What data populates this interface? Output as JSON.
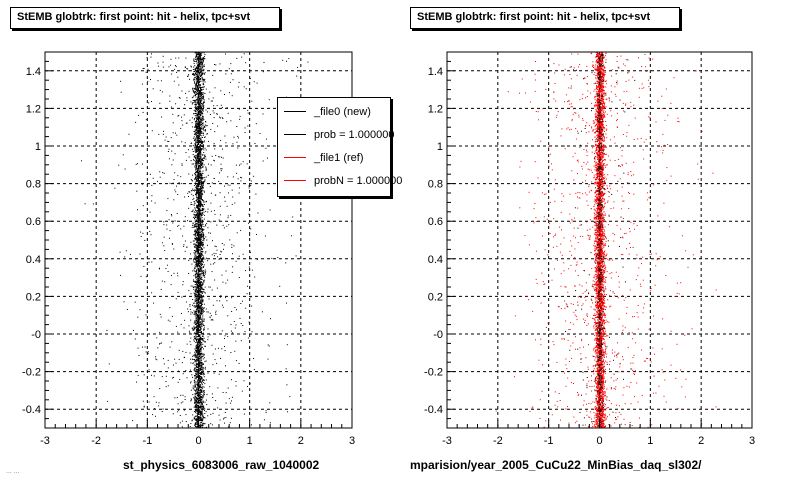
{
  "panels": [
    {
      "title": "StEMB globtrk: first point: hit - helix, tpc+svt",
      "bottom_label": "st_physics_6083006_raw_1040002"
    },
    {
      "title": "StEMB globtrk: first point: hit - helix, tpc+svt",
      "bottom_label": "mparision/year_2005_CuCu22_MinBias_daq_sl302/"
    }
  ],
  "footer_text": "... ...",
  "legend": {
    "entries": [
      {
        "label": "_file0 (new)",
        "color": "#000000"
      },
      {
        "label": "prob = 1.000000",
        "color": "#000000"
      },
      {
        "label": "_file1 (ref)",
        "color": "#ff0000"
      },
      {
        "label": "probN = 1.000000",
        "color": "#ff0000"
      }
    ]
  },
  "chart_data": [
    {
      "type": "scatter",
      "title": "StEMB globtrk: first point: hit - helix, tpc+svt",
      "xlabel": "st_physics_6083006_raw_1040002",
      "ylabel": "",
      "xlim": [
        -3,
        3
      ],
      "ylim": [
        -0.5,
        1.5
      ],
      "grid": true,
      "x_ticks": [
        -3,
        -2,
        -1,
        0,
        1,
        2,
        3
      ],
      "y_ticks": [
        -0.4,
        -0.2,
        0,
        0.2,
        0.4,
        0.6,
        0.8,
        1,
        1.2,
        1.4
      ],
      "x_tick_labels": [
        "-3",
        "-2",
        "-1",
        "0",
        "1",
        "2",
        "3"
      ],
      "y_tick_labels": [
        "-0.4",
        "-0.2",
        "-0",
        "0.2",
        "0.4",
        "0.6",
        "0.8",
        "1",
        "1.2",
        "1.4"
      ],
      "series": [
        {
          "name": "_file0 (new)",
          "color": "#000000",
          "distribution": {
            "x_core_center": 0.0,
            "x_core_sigma": 0.05,
            "x_tail_sigma": 0.7,
            "y_range": [
              -0.5,
              1.5
            ],
            "approx_points": 5000
          }
        }
      ]
    },
    {
      "type": "scatter",
      "title": "StEMB globtrk: first point: hit - helix, tpc+svt",
      "xlabel": "mparision/year_2005_CuCu22_MinBias_daq_sl302/",
      "ylabel": "",
      "xlim": [
        -3,
        3
      ],
      "ylim": [
        -0.5,
        1.5
      ],
      "grid": true,
      "x_ticks": [
        -3,
        -2,
        -1,
        0,
        1,
        2,
        3
      ],
      "y_ticks": [
        -0.4,
        -0.2,
        0,
        0.2,
        0.4,
        0.6,
        0.8,
        1,
        1.2,
        1.4
      ],
      "x_tick_labels": [
        "-3",
        "-2",
        "-1",
        "0",
        "1",
        "2",
        "3"
      ],
      "y_tick_labels": [
        "-0.4",
        "-0.2",
        "-0",
        "0.2",
        "0.4",
        "0.6",
        "0.8",
        "1",
        "1.2",
        "1.4"
      ],
      "series": [
        {
          "name": "_file1 (ref)",
          "color": "#ff0000",
          "distribution": {
            "x_core_center": 0.0,
            "x_core_sigma": 0.05,
            "x_tail_sigma": 0.7,
            "y_range": [
              -0.5,
              1.5
            ],
            "approx_points": 5000
          }
        },
        {
          "name": "_file0 (new)",
          "color": "#000000",
          "distribution": {
            "x_core_center": 0.0,
            "x_core_sigma": 0.03,
            "x_tail_sigma": 0.3,
            "y_range": [
              -0.5,
              1.5
            ],
            "approx_points": 700
          }
        }
      ]
    }
  ]
}
